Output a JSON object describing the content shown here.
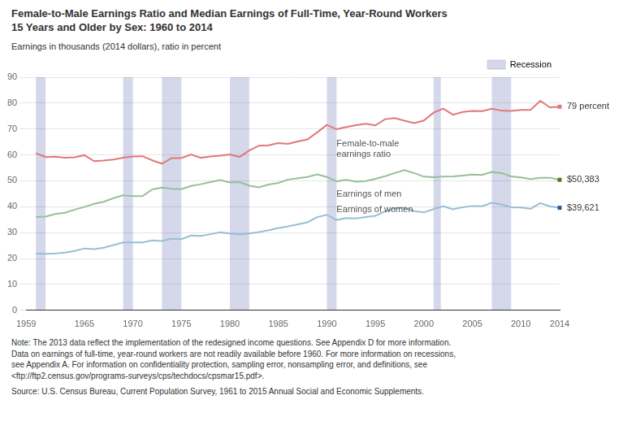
{
  "chart_data": {
    "type": "line",
    "title": "Female-to-Male Earnings Ratio and Median Earnings of Full-Time, Year-Round Workers",
    "subtitle": "15 Years and Older by Sex: 1960 to 2014",
    "ylabel": "Earnings in thousands (2014 dollars), ratio in percent",
    "note": "Note: The 2013 data reflect the implementation of the redesigned income questions. See Appendix D for more information.\nData on earnings of full-time, year-round workers are not readily available before 1960. For more information on recessions,\nsee Appendix A. For information on confidentiality protection, sampling error, nonsampling error, and definitions, see\n<ftp://ftp2.census.gov/programs-surveys/cps/techdocs/cpsmar15.pdf>.",
    "source": "Source: U.S. Census Bureau, Current Population Survey, 1961 to 2015 Annual Social and Economic Supplements.",
    "x": [
      1960,
      1961,
      1962,
      1963,
      1964,
      1965,
      1966,
      1967,
      1968,
      1969,
      1970,
      1971,
      1972,
      1973,
      1974,
      1975,
      1976,
      1977,
      1978,
      1979,
      1980,
      1981,
      1982,
      1983,
      1984,
      1985,
      1986,
      1987,
      1988,
      1989,
      1990,
      1991,
      1992,
      1993,
      1994,
      1995,
      1996,
      1997,
      1998,
      1999,
      2000,
      2001,
      2002,
      2003,
      2004,
      2005,
      2006,
      2007,
      2008,
      2009,
      2010,
      2011,
      2012,
      2013,
      2014
    ],
    "series": [
      {
        "name": "Female-to-male\nearnings ratio",
        "color": "#e07878",
        "end_color": "#e07878",
        "end_label": "79 percent",
        "label_position": [
          1991,
          66
        ],
        "values": [
          60.7,
          59.2,
          59.3,
          58.9,
          59.1,
          59.9,
          57.6,
          57.8,
          58.2,
          58.9,
          59.4,
          59.5,
          57.9,
          56.6,
          58.8,
          58.8,
          60.2,
          58.9,
          59.4,
          59.7,
          60.2,
          59.2,
          61.7,
          63.6,
          63.7,
          64.6,
          64.3,
          65.2,
          66.0,
          68.7,
          71.6,
          69.9,
          70.8,
          71.5,
          72.0,
          71.4,
          73.8,
          74.2,
          73.2,
          72.3,
          73.3,
          76.3,
          77.9,
          75.5,
          76.6,
          77.0,
          76.9,
          77.8,
          77.1,
          77.0,
          77.4,
          77.4,
          80.9,
          78.3,
          78.6
        ]
      },
      {
        "name": "Earnings of men",
        "color": "#96c096",
        "end_color": "#4a7a28",
        "end_label": "$50,383",
        "label_position": [
          1991,
          46.5
        ],
        "values": [
          36.1,
          36.2,
          37.2,
          37.7,
          38.9,
          39.9,
          41.1,
          41.9,
          43.3,
          44.4,
          44.1,
          44.1,
          46.7,
          47.4,
          46.9,
          46.8,
          48.0,
          48.7,
          49.5,
          50.3,
          49.4,
          49.5,
          48.1,
          47.5,
          48.6,
          49.2,
          50.5,
          51.0,
          51.5,
          52.5,
          51.5,
          49.8,
          50.4,
          49.7,
          49.9,
          50.8,
          51.8,
          53.0,
          54.1,
          53.0,
          51.6,
          51.4,
          51.6,
          51.7,
          52.0,
          52.4,
          52.3,
          53.4,
          53.0,
          51.7,
          51.3,
          50.7,
          51.2,
          51.2,
          50.4
        ]
      },
      {
        "name": "Earnings of women",
        "color": "#96c0d5",
        "end_color": "#1a5ea0",
        "end_label": "$39,621",
        "label_position": [
          1991,
          40.5
        ],
        "values": [
          21.9,
          21.8,
          22.0,
          22.3,
          22.9,
          23.9,
          23.6,
          24.2,
          25.2,
          26.2,
          26.2,
          26.2,
          27.0,
          26.8,
          27.6,
          27.5,
          28.9,
          28.7,
          29.4,
          30.1,
          29.7,
          29.3,
          29.7,
          30.2,
          30.9,
          31.8,
          32.4,
          33.2,
          34.0,
          36.0,
          36.9,
          34.9,
          35.6,
          35.5,
          36.0,
          36.5,
          38.2,
          39.4,
          39.6,
          38.3,
          37.8,
          39.1,
          40.2,
          39.0,
          39.8,
          40.3,
          40.2,
          41.5,
          40.9,
          39.8,
          39.7,
          39.2,
          41.4,
          40.1,
          39.6
        ]
      }
    ],
    "recessions": {
      "label": "Recession",
      "color": "#d5d8ea",
      "periods": [
        [
          1960,
          1961
        ],
        [
          1969,
          1970
        ],
        [
          1973,
          1975
        ],
        [
          1980,
          1982
        ],
        [
          1990,
          1991
        ],
        [
          2001,
          2001.75
        ],
        [
          2007,
          2009
        ]
      ]
    },
    "xlim": [
      1959,
      2014
    ],
    "xticks": [
      1959,
      1965,
      1970,
      1975,
      1980,
      1985,
      1990,
      1995,
      2000,
      2005,
      2010,
      2014
    ],
    "ylim": [
      0,
      90
    ],
    "yticks": [
      0,
      10,
      20,
      30,
      40,
      50,
      60,
      70,
      80,
      90
    ],
    "grid": "y",
    "legend": "upper right"
  }
}
